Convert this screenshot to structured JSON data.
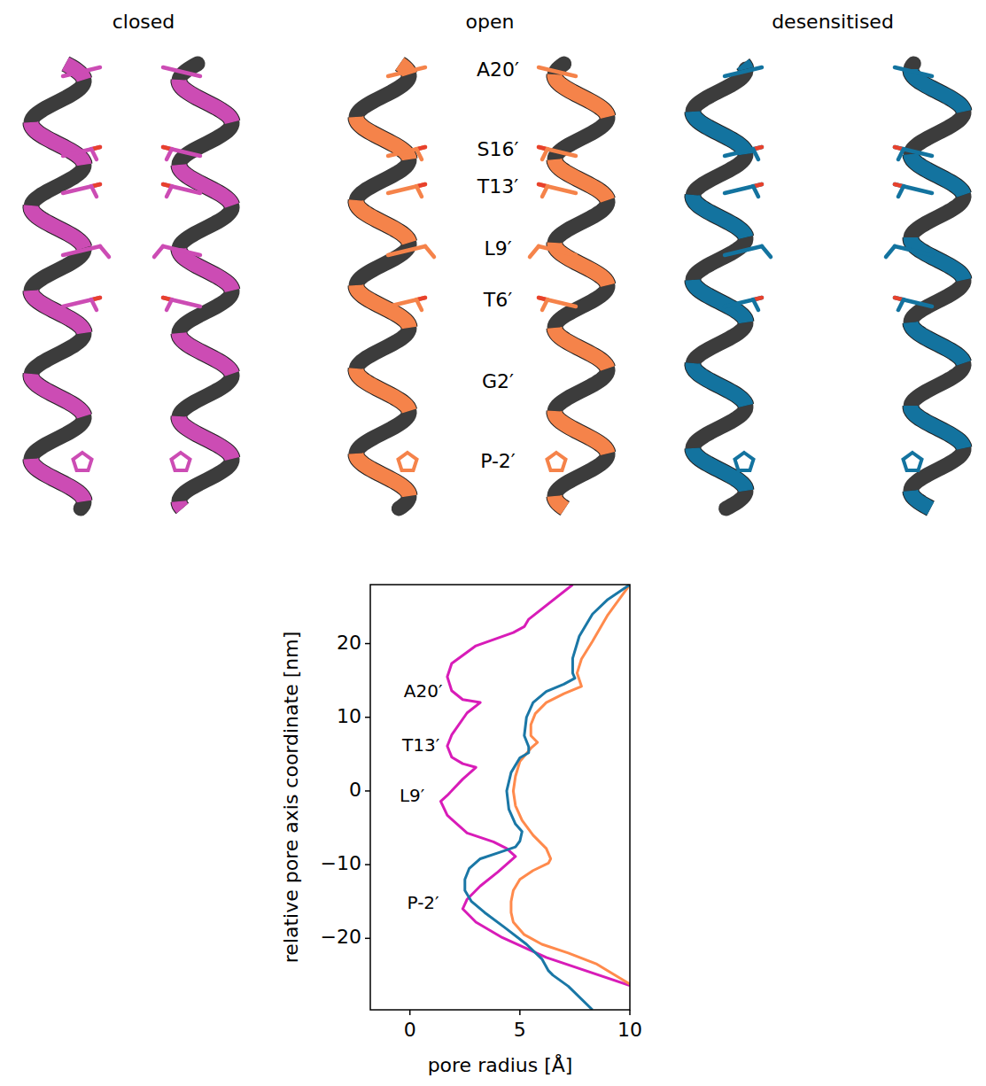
{
  "structures": {
    "states": [
      {
        "title": "closed",
        "color": "#cc4cb4"
      },
      {
        "title": "open",
        "color": "#f5834a"
      },
      {
        "title": "desensitised",
        "color": "#13739f"
      }
    ],
    "residues": [
      "A20′",
      "S16′",
      "T13′",
      "L9′",
      "T6′",
      "G2′",
      "P-2′"
    ]
  },
  "chart_data": {
    "type": "line",
    "x_label": "pore radius [Å]",
    "y_label": "relative pore axis coordinate [nm]",
    "xlim": [
      -1.8,
      10
    ],
    "ylim": [
      -29.7,
      28
    ],
    "xticks": [
      0,
      5,
      10
    ],
    "yticks": [
      {
        "value": -20,
        "label": "−20"
      },
      {
        "value": -10,
        "label": "−10"
      },
      0,
      10,
      20
    ],
    "annotations": [
      {
        "text": "A20′",
        "x": 0.6,
        "y": 13.4
      },
      {
        "text": "T13′",
        "x": 0.5,
        "y": 6.1
      },
      {
        "text": "L9′",
        "x": 0.1,
        "y": -0.8
      },
      {
        "text": "P-2′",
        "x": 0.6,
        "y": -15.3
      }
    ],
    "series": [
      {
        "color": "#d81cb8",
        "x": [
          7.4,
          5.4,
          5.2,
          4.7,
          3.0,
          1.9,
          1.7,
          1.9,
          2.4,
          3.2,
          2.6,
          1.9,
          1.7,
          1.9,
          2.4,
          3.0,
          2.4,
          1.7,
          1.4,
          1.7,
          2.6,
          3.8,
          4.4,
          4.8,
          4.0,
          3.2,
          2.6,
          2.4,
          3.0,
          4.2,
          6.2,
          10
        ],
        "values": [
          28,
          23.3,
          22.3,
          21.5,
          19.7,
          17.3,
          15.5,
          13.6,
          12.4,
          12.0,
          10.6,
          7.6,
          6.1,
          4.6,
          3.7,
          3.2,
          1.6,
          -0.6,
          -1.4,
          -3.3,
          -5.7,
          -6.9,
          -7.8,
          -8.9,
          -11,
          -12.9,
          -14.7,
          -16,
          -17.8,
          -19.9,
          -22.6,
          -26.4
        ]
      },
      {
        "color": "#ff8a4c",
        "x": [
          10,
          9.0,
          8.3,
          7.8,
          7.6,
          7.8,
          7.0,
          6.2,
          5.7,
          5.5,
          5.5,
          5.8,
          5.5,
          5.0,
          4.8,
          4.7,
          4.8,
          5.1,
          5.6,
          6.2,
          6.4,
          6.3,
          5.6,
          5.0,
          4.7,
          4.6,
          4.6,
          4.7,
          5.2,
          6.0,
          7.2,
          8.5,
          10
        ],
        "values": [
          28,
          23.9,
          20.3,
          17.9,
          16.0,
          14.2,
          13.2,
          12,
          10.5,
          9,
          7.5,
          6.6,
          5.8,
          4,
          2,
          0,
          -2,
          -4,
          -6,
          -7.8,
          -9.2,
          -9.8,
          -10.8,
          -12,
          -13.5,
          -15,
          -16.5,
          -17.8,
          -19.5,
          -20.8,
          -22,
          -23.5,
          -26.2
        ]
      },
      {
        "color": "#1a77a6",
        "x": [
          10,
          9.0,
          8.3,
          7.7,
          7.4,
          7.4,
          7.5,
          7.0,
          6.2,
          5.6,
          5.3,
          5.2,
          5.4,
          5.4,
          5.0,
          4.6,
          4.4,
          4.5,
          4.8,
          5.1,
          5.0,
          4.8,
          4.0,
          3.2,
          2.7,
          2.5,
          2.5,
          2.8,
          3.4,
          4.3,
          5.3,
          6.0,
          6.3,
          6.5,
          7.2,
          8.3
        ],
        "values": [
          28,
          26,
          24,
          21,
          18,
          16,
          15.3,
          14.5,
          13.5,
          12,
          10,
          7.5,
          6,
          5.2,
          4.5,
          2.5,
          0,
          -2.5,
          -4.5,
          -5.5,
          -6.8,
          -7.6,
          -8.4,
          -9.2,
          -10.5,
          -12,
          -13.5,
          -15,
          -16.5,
          -18.5,
          -20.8,
          -22.8,
          -24.4,
          -25,
          -26.5,
          -29.7
        ]
      }
    ]
  }
}
